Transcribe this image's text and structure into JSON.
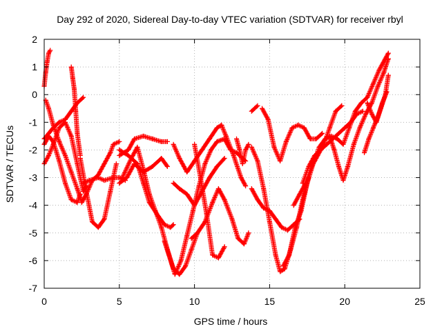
{
  "chart_data": {
    "type": "scatter",
    "title": "Day 292 of 2020, Sidereal Day-to-day VTEC variation (SDTVAR) for receiver rbyl",
    "xlabel": "GPS time / hours",
    "ylabel": "SDTVAR / TECUs",
    "xlim": [
      0,
      25
    ],
    "ylim": [
      -7,
      2
    ],
    "xticks": [
      "0",
      "5",
      "10",
      "15",
      "20",
      "25"
    ],
    "yticks": [
      "-7",
      "-6",
      "-5",
      "-4",
      "-3",
      "-2",
      "-1",
      "0",
      "1",
      "2"
    ],
    "grid": true,
    "marker": "+",
    "marker_color": "#ff0000",
    "series": [
      {
        "x": [
          0.0,
          0.1,
          0.2,
          0.3,
          0.4
        ],
        "y": [
          0.3,
          0.8,
          1.2,
          1.5,
          1.6
        ]
      },
      {
        "x": [
          0.0,
          0.3,
          0.6,
          1.0,
          1.4,
          1.8,
          2.2,
          2.6
        ],
        "y": [
          -1.6,
          -1.4,
          -1.2,
          -1.0,
          -0.9,
          -0.6,
          -0.3,
          -0.1
        ]
      },
      {
        "x": [
          0.0,
          0.3,
          0.6,
          1.0,
          1.4,
          1.8,
          2.2,
          2.6,
          2.8
        ],
        "y": [
          -2.5,
          -2.2,
          -1.8,
          -1.2,
          -1.0,
          -1.5,
          -2.5,
          -3.5,
          -3.3
        ]
      },
      {
        "x": [
          0.1,
          0.3,
          0.6,
          1.0,
          1.4,
          1.8,
          2.2,
          2.5,
          2.8,
          3.2,
          3.6,
          4.0,
          4.4,
          4.6,
          5.0
        ],
        "y": [
          -0.2,
          -0.5,
          -1.1,
          -1.7,
          -2.2,
          -2.8,
          -3.4,
          -3.9,
          -3.6,
          -3.1,
          -2.9,
          -2.5,
          -2.1,
          -1.8,
          -1.7
        ]
      },
      {
        "x": [
          0.0,
          0.3,
          0.6,
          1.0,
          1.4,
          1.8,
          2.2,
          2.4
        ],
        "y": [
          -1.8,
          -1.5,
          -1.7,
          -2.4,
          -3.2,
          -3.8,
          -3.9,
          -3.6
        ]
      },
      {
        "x": [
          1.8,
          1.9,
          2.0,
          2.1,
          2.2,
          2.4
        ],
        "y": [
          1.0,
          0.6,
          0.2,
          -0.6,
          -1.4,
          -2.2
        ]
      },
      {
        "x": [
          2.4,
          2.8,
          3.2,
          3.6,
          4.0,
          4.4,
          4.8
        ],
        "y": [
          -2.3,
          -3.5,
          -4.6,
          -4.8,
          -4.5,
          -3.5,
          -2.5
        ]
      },
      {
        "x": [
          2.6,
          3.0,
          3.6,
          4.0,
          4.6,
          5.0,
          5.4
        ],
        "y": [
          -3.2,
          -3.1,
          -3.0,
          -3.1,
          -3.0,
          -3.0,
          -3.1
        ]
      },
      {
        "x": [
          5.0,
          5.6,
          6.0,
          6.6,
          7.2,
          7.8,
          8.2
        ],
        "y": [
          -2.2,
          -2.0,
          -1.6,
          -1.5,
          -1.6,
          -1.7,
          -1.7
        ]
      },
      {
        "x": [
          5.0,
          5.6,
          6.2,
          6.6,
          7.0,
          7.6,
          8.0,
          8.4,
          8.6
        ],
        "y": [
          -2.0,
          -2.2,
          -2.5,
          -3.2,
          -3.9,
          -4.4,
          -4.7,
          -4.8,
          -4.7
        ]
      },
      {
        "x": [
          5.2,
          5.8,
          6.2,
          6.6,
          7.0,
          7.4,
          7.8,
          8.2,
          8.6,
          9.0,
          9.4,
          9.8,
          10.2
        ],
        "y": [
          -3.0,
          -2.3,
          -1.9,
          -2.7,
          -3.6,
          -4.2,
          -4.8,
          -5.6,
          -6.3,
          -6.5,
          -6.2,
          -5.6,
          -5.0
        ]
      },
      {
        "x": [
          5.0,
          5.5,
          6.0,
          6.6,
          7.2,
          7.8,
          8.2
        ],
        "y": [
          -3.2,
          -3.0,
          -2.5,
          -2.8,
          -2.6,
          -2.3,
          -2.6
        ]
      },
      {
        "x": [
          8.0,
          8.3,
          8.7,
          9.1,
          9.5,
          9.9,
          10.3,
          10.7,
          11.1,
          11.5,
          12.0,
          12.4,
          12.8,
          13.2,
          13.4
        ],
        "y": [
          -5.3,
          -5.8,
          -6.5,
          -6.0,
          -5.1,
          -4.2,
          -3.3,
          -2.5,
          -2.0,
          -1.7,
          -1.6,
          -2.0,
          -2.1,
          -2.3,
          -2.4
        ]
      },
      {
        "x": [
          8.6,
          9.0,
          9.5,
          10.0,
          10.5,
          11.0,
          11.5,
          11.8,
          12.1,
          12.6,
          13.1,
          13.4
        ],
        "y": [
          -1.8,
          -2.3,
          -2.8,
          -2.4,
          -2.0,
          -1.6,
          -1.2,
          -1.1,
          -1.5,
          -2.2,
          -3.0,
          -3.3
        ]
      },
      {
        "x": [
          8.6,
          9.0,
          9.5,
          10.0,
          10.5,
          11.0,
          11.5,
          12.0
        ],
        "y": [
          -3.2,
          -3.4,
          -3.6,
          -4.0,
          -3.5,
          -3.0,
          -2.6,
          -2.3
        ]
      },
      {
        "x": [
          9.8,
          10.2,
          10.7,
          11.2,
          11.6,
          12.0,
          12.5,
          12.9,
          13.3,
          13.6
        ],
        "y": [
          -5.2,
          -5.0,
          -4.6,
          -3.9,
          -3.4,
          -3.8,
          -4.5,
          -5.2,
          -5.4,
          -5.0
        ]
      },
      {
        "x": [
          10.0,
          10.4,
          10.8,
          11.2,
          11.6,
          12.0
        ],
        "y": [
          -1.8,
          -3.0,
          -4.3,
          -5.8,
          -5.9,
          -5.5
        ]
      },
      {
        "x": [
          12.8,
          13.0,
          13.2,
          13.4,
          13.6
        ],
        "y": [
          -1.6,
          -2.0,
          -2.5,
          -2.0,
          -1.8
        ]
      },
      {
        "x": [
          13.8,
          14.0,
          14.2
        ],
        "y": [
          -0.6,
          -0.5,
          -0.4
        ]
      },
      {
        "x": [
          13.8,
          14.2,
          14.6,
          15.0,
          15.4,
          15.7,
          16.0,
          16.4,
          16.8,
          17.2,
          17.6
        ],
        "y": [
          -1.9,
          -2.4,
          -3.4,
          -4.6,
          -5.8,
          -6.4,
          -6.3,
          -5.6,
          -4.8,
          -3.8,
          -3.0
        ]
      },
      {
        "x": [
          13.8,
          14.2,
          14.6,
          15.0,
          15.4,
          15.8,
          16.2,
          16.6,
          17.0
        ],
        "y": [
          -3.4,
          -3.8,
          -4.1,
          -4.2,
          -4.5,
          -4.8,
          -4.9,
          -4.7,
          -4.5
        ]
      },
      {
        "x": [
          14.5,
          14.9,
          15.3,
          15.7,
          16.1,
          16.5,
          16.9,
          17.3,
          17.7,
          18.1,
          18.5
        ],
        "y": [
          -0.5,
          -0.9,
          -1.9,
          -2.4,
          -1.7,
          -1.2,
          -1.1,
          -1.2,
          -1.6,
          -1.6,
          -1.4
        ]
      },
      {
        "x": [
          15.9,
          16.3,
          16.7,
          17.1,
          17.5,
          17.9,
          18.3,
          18.7,
          19.1,
          19.5
        ],
        "y": [
          -6.2,
          -5.8,
          -4.8,
          -4.2,
          -3.2,
          -2.5,
          -1.9,
          -1.6,
          -1.5,
          -1.6
        ]
      },
      {
        "x": [
          16.6,
          17.0,
          17.4,
          17.8,
          18.2,
          18.6,
          19.0,
          19.4,
          19.8
        ],
        "y": [
          -4.0,
          -3.6,
          -3.2,
          -2.6,
          -2.2,
          -1.8,
          -1.2,
          -0.6,
          -0.4
        ]
      },
      {
        "x": [
          17.2,
          17.6,
          18.0,
          18.4,
          18.8,
          19.2,
          19.6,
          20.0,
          20.4,
          20.8,
          21.2
        ],
        "y": [
          -3.2,
          -2.6,
          -2.2,
          -2.0,
          -1.8,
          -1.6,
          -1.4,
          -1.2,
          -1.0,
          -0.7,
          -0.6
        ]
      },
      {
        "x": [
          19.0,
          19.3,
          19.6,
          19.9,
          20.2,
          20.6,
          21.0,
          21.4,
          21.8,
          22.2,
          22.6,
          22.9
        ],
        "y": [
          -1.5,
          -2.0,
          -2.6,
          -3.1,
          -2.6,
          -1.8,
          -1.2,
          -0.7,
          -0.3,
          0.3,
          0.8,
          1.3
        ]
      },
      {
        "x": [
          19.5,
          19.9,
          20.3,
          20.7,
          21.1,
          21.5,
          21.9,
          22.3,
          22.7,
          22.9
        ],
        "y": [
          -1.6,
          -1.8,
          -1.2,
          -0.6,
          -0.3,
          -0.1,
          0.4,
          0.9,
          1.3,
          1.5
        ]
      },
      {
        "x": [
          21.3,
          21.6,
          21.9,
          22.2,
          22.5,
          22.8
        ],
        "y": [
          -2.1,
          -1.6,
          -1.2,
          -0.8,
          -0.3,
          0.1
        ]
      },
      {
        "x": [
          21.5,
          21.8,
          22.1,
          22.4,
          22.7,
          22.9
        ],
        "y": [
          -0.3,
          -0.7,
          -1.0,
          -0.5,
          0.0,
          0.7
        ]
      }
    ]
  }
}
